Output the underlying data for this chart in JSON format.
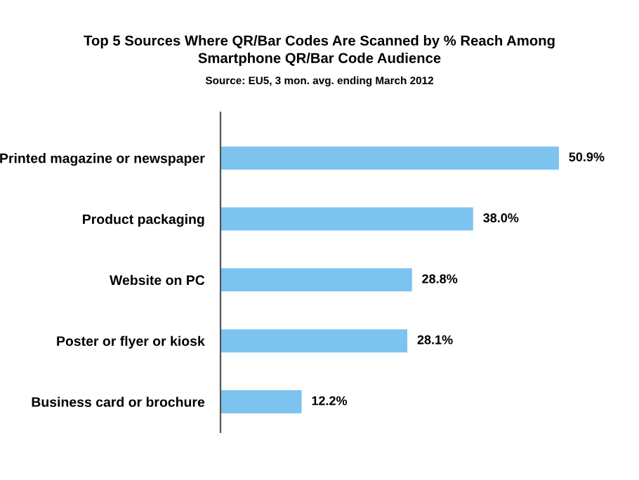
{
  "chart_data": {
    "type": "bar",
    "orientation": "horizontal",
    "title": "Top 5 Sources Where QR/Bar Codes Are Scanned by % Reach Among\nSmartphone QR/Bar Code Audience",
    "subtitle": "Source: EU5, 3 mon. avg. ending March 2012",
    "categories": [
      "Printed magazine or newspaper",
      "Product packaging",
      "Website on PC",
      "Poster or flyer or kiosk",
      "Business card or brochure"
    ],
    "values": [
      50.9,
      38.0,
      28.8,
      28.1,
      12.2
    ],
    "value_labels": [
      "50.9%",
      "38.0%",
      "28.8%",
      "28.1%",
      "12.2%"
    ],
    "color": "#7dc3ef",
    "grid": false,
    "legend": false
  }
}
